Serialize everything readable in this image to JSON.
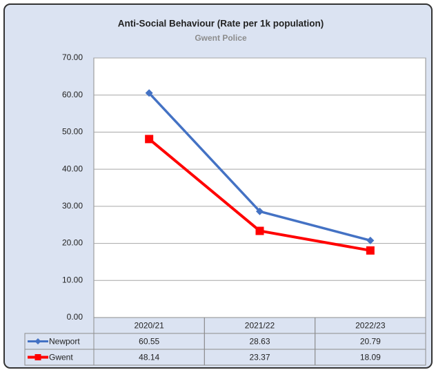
{
  "chart_data": {
    "type": "line",
    "title": "Anti-Social Behaviour (Rate per 1k population)",
    "subtitle": "Gwent Police",
    "categories": [
      "2020/21",
      "2021/22",
      "2022/23"
    ],
    "series": [
      {
        "name": "Newport",
        "color": "#4472c4",
        "marker": "diamond",
        "values": [
          60.55,
          28.63,
          20.79
        ]
      },
      {
        "name": "Gwent",
        "color": "#ff0000",
        "marker": "square",
        "values": [
          48.14,
          23.37,
          18.09
        ]
      }
    ],
    "ylim": [
      0,
      70
    ],
    "yticks": [
      {
        "value": 0,
        "label": "0.00"
      },
      {
        "value": 10,
        "label": "10.00"
      },
      {
        "value": 20,
        "label": "20.00"
      },
      {
        "value": 30,
        "label": "30.00"
      },
      {
        "value": 40,
        "label": "40.00"
      },
      {
        "value": 50,
        "label": "50.00"
      },
      {
        "value": 60,
        "label": "60.00"
      },
      {
        "value": 70,
        "label": "70.00"
      }
    ],
    "grid": true
  }
}
